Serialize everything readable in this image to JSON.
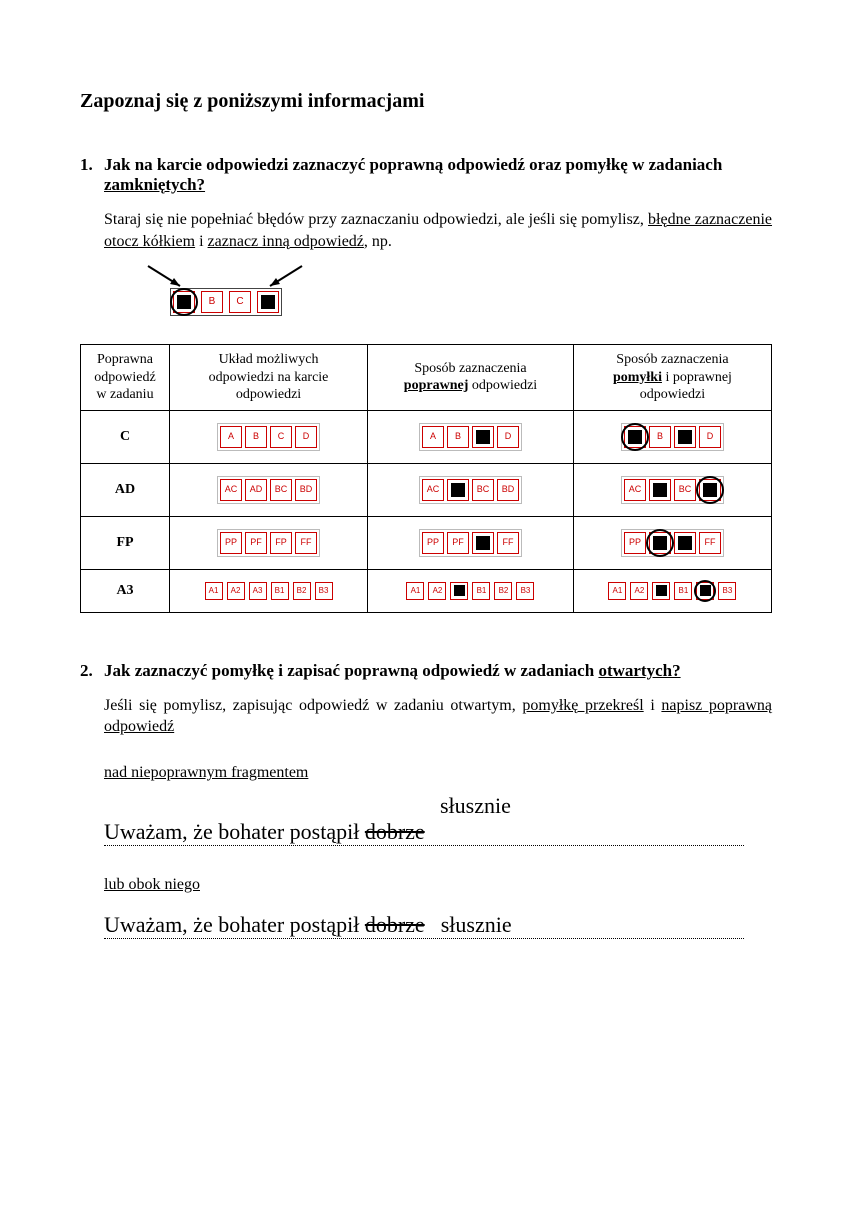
{
  "title": "Zapoznaj się z poniższymi informacjami",
  "q1": {
    "num": "1.",
    "text_a": "Jak na karcie odpowiedzi zaznaczyć poprawną odpowiedź oraz pomyłkę w zadaniach ",
    "text_u": "zamkniętych?",
    "para_a": "Staraj się nie popełniać błędów przy zaznaczaniu odpowiedzi, ale jeśli się pomylisz, ",
    "para_u1": "błędne zaznaczenie otocz kółkiem",
    "para_mid": " i ",
    "para_u2": "zaznacz inną odpowiedź",
    "para_end": ", np."
  },
  "example": {
    "boxes": [
      "",
      "B",
      "C",
      ""
    ],
    "filled": [
      true,
      false,
      false,
      true
    ],
    "circled": [
      true,
      false,
      false,
      false
    ]
  },
  "table": {
    "headers": {
      "c1a": "Poprawna",
      "c1b": "odpowiedź",
      "c1c": "w zadaniu",
      "c2a": "Układ możliwych",
      "c2b": "odpowiedzi na karcie",
      "c2c": "odpowiedzi",
      "c3a": "Sposób zaznaczenia",
      "c3b": "poprawnej",
      "c3c": " odpowiedzi",
      "c4a": "Sposób zaznaczenia",
      "c4b": "pomyłki",
      "c4c": " i poprawnej",
      "c4d": "odpowiedzi"
    },
    "rows": [
      {
        "answer": "C",
        "layout": [
          "A",
          "B",
          "C",
          "D"
        ],
        "correct": {
          "labels": [
            "A",
            "B",
            "",
            "D"
          ],
          "filled": [
            false,
            false,
            true,
            false
          ],
          "circled": [
            false,
            false,
            false,
            false
          ]
        },
        "mistake": {
          "labels": [
            "",
            "B",
            "",
            "D"
          ],
          "filled": [
            true,
            false,
            true,
            false
          ],
          "circled": [
            true,
            false,
            false,
            false
          ]
        }
      },
      {
        "answer": "AD",
        "layout": [
          "AC",
          "AD",
          "BC",
          "BD"
        ],
        "correct": {
          "labels": [
            "AC",
            "",
            "BC",
            "BD"
          ],
          "filled": [
            false,
            true,
            false,
            false
          ],
          "circled": [
            false,
            false,
            false,
            false
          ]
        },
        "mistake": {
          "labels": [
            "AC",
            "",
            "BC",
            ""
          ],
          "filled": [
            false,
            true,
            false,
            true
          ],
          "circled": [
            false,
            false,
            false,
            true
          ]
        }
      },
      {
        "answer": "FP",
        "layout": [
          "PP",
          "PF",
          "FP",
          "FF"
        ],
        "correct": {
          "labels": [
            "PP",
            "PF",
            "",
            "FF"
          ],
          "filled": [
            false,
            false,
            true,
            false
          ],
          "circled": [
            false,
            false,
            false,
            false
          ]
        },
        "mistake": {
          "labels": [
            "PP",
            "",
            "",
            "FF"
          ],
          "filled": [
            false,
            true,
            true,
            false
          ],
          "circled": [
            false,
            true,
            false,
            false
          ]
        }
      },
      {
        "answer": "A3",
        "layout": [
          "A1",
          "A2",
          "A3",
          "B1",
          "B2",
          "B3"
        ],
        "correct": {
          "labels": [
            "A1",
            "A2",
            "",
            "B1",
            "B2",
            "B3"
          ],
          "filled": [
            false,
            false,
            true,
            false,
            false,
            false
          ],
          "circled": [
            false,
            false,
            false,
            false,
            false,
            false
          ]
        },
        "mistake": {
          "labels": [
            "A1",
            "A2",
            "",
            "B1",
            "",
            "B3"
          ],
          "filled": [
            false,
            false,
            true,
            false,
            true,
            false
          ],
          "circled": [
            false,
            false,
            false,
            false,
            true,
            false
          ]
        }
      }
    ]
  },
  "q2": {
    "num": "2.",
    "text_a": "Jak zaznaczyć pomyłkę i zapisać poprawną odpowiedź w zadaniach ",
    "text_u": "otwartych?",
    "para_a": "Jeśli się pomylisz, zapisując odpowiedź w zadaniu otwartym, ",
    "para_u1": "pomyłkę przekreśl",
    "para_mid": " i ",
    "para_u2": "napisz poprawną odpowiedź",
    "above_label": "nad niepoprawnym fragmentem",
    "correction": "słusznie",
    "sentence_a": "Uważam, że bohater postąpił ",
    "sentence_cross": "dobrze",
    "beside_label": "lub obok niego",
    "beside_correction": "słusznie"
  }
}
